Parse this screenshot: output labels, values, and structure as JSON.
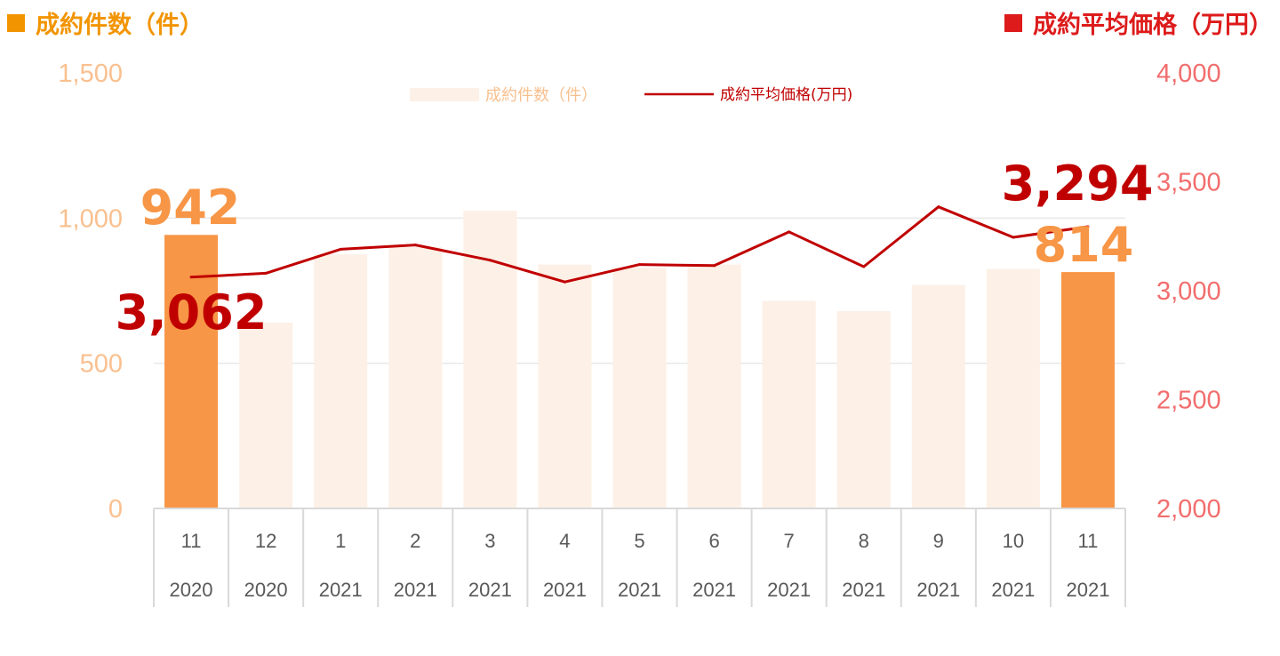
{
  "titles": {
    "left": "成約件数（件）",
    "right": "成約平均価格（万円）"
  },
  "colors": {
    "bar_highlight": "#f79646",
    "bar_light": "#fdf0e6",
    "line": "#c00000",
    "left_axis": "#f9c08f",
    "right_axis": "#f26d6d",
    "left_title": "#f29400",
    "right_title": "#dd1b1b"
  },
  "chart_data": {
    "type": "bar",
    "categories": [
      {
        "month": "11",
        "year": "2020"
      },
      {
        "month": "12",
        "year": "2020"
      },
      {
        "month": "1",
        "year": "2021"
      },
      {
        "month": "2",
        "year": "2021"
      },
      {
        "month": "3",
        "year": "2021"
      },
      {
        "month": "4",
        "year": "2021"
      },
      {
        "month": "5",
        "year": "2021"
      },
      {
        "month": "6",
        "year": "2021"
      },
      {
        "month": "7",
        "year": "2021"
      },
      {
        "month": "8",
        "year": "2021"
      },
      {
        "month": "9",
        "year": "2021"
      },
      {
        "month": "10",
        "year": "2021"
      },
      {
        "month": "11",
        "year": "2021"
      }
    ],
    "series": [
      {
        "name": "成約件数（件）",
        "type": "bar",
        "axis": "left",
        "values": [
          942,
          640,
          875,
          900,
          1025,
          840,
          830,
          840,
          715,
          680,
          770,
          825,
          814
        ],
        "highlight": [
          true,
          false,
          false,
          false,
          false,
          false,
          false,
          false,
          false,
          false,
          false,
          false,
          true
        ]
      },
      {
        "name": "成約平均価格(万円)",
        "type": "line",
        "axis": "right",
        "values": [
          3062,
          3080,
          3190,
          3210,
          3140,
          3040,
          3120,
          3115,
          3270,
          3110,
          3385,
          3245,
          3294
        ]
      }
    ],
    "y_left": {
      "min": 0,
      "max": 1500,
      "ticks": [
        "0",
        "500",
        "1,000",
        "1,500"
      ]
    },
    "y_right": {
      "min": 2000,
      "max": 4000,
      "ticks": [
        "2,000",
        "2,500",
        "3,000",
        "3,500",
        "4,000"
      ]
    },
    "gridlines": true,
    "legend_position": "top-center",
    "annotations": {
      "first_count": "942",
      "last_count": "814",
      "first_price": "3,062",
      "last_price": "3,294"
    }
  }
}
